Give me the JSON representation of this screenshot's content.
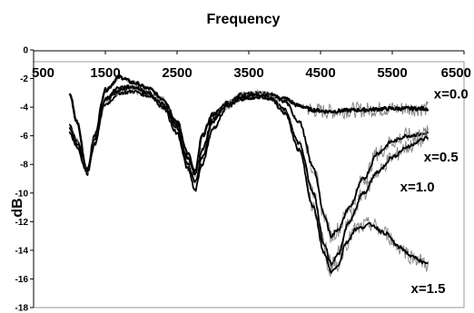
{
  "chart_data": {
    "type": "line",
    "title": "Frequency",
    "xlabel": "",
    "ylabel": "dB",
    "xlim": [
      500,
      6500
    ],
    "ylim": [
      -18,
      0
    ],
    "x_ticks": [
      "500",
      "1500",
      "2500",
      "3500",
      "4500",
      "5500",
      "6500"
    ],
    "y_ticks": [
      "0",
      "-2",
      "-4",
      "-6",
      "-8",
      "-10",
      "-12",
      "-14",
      "-16",
      "-18"
    ],
    "x_axis_position": "top",
    "grid": false,
    "colors": {
      "curve": "#000000",
      "noise": "#8a8a8a",
      "plot_border": "#999999"
    },
    "series": [
      {
        "name": "x=0.0",
        "points": [
          [
            1000,
            -3.0
          ],
          [
            1100,
            -5.0
          ],
          [
            1250,
            -8.6
          ],
          [
            1350,
            -6.0
          ],
          [
            1500,
            -2.8
          ],
          [
            1700,
            -1.9
          ],
          [
            1900,
            -2.3
          ],
          [
            2100,
            -2.7
          ],
          [
            2300,
            -3.4
          ],
          [
            2500,
            -5.0
          ],
          [
            2650,
            -7.5
          ],
          [
            2750,
            -8.7
          ],
          [
            2850,
            -6.0
          ],
          [
            3000,
            -4.5
          ],
          [
            3200,
            -3.8
          ],
          [
            3400,
            -3.4
          ],
          [
            3600,
            -3.3
          ],
          [
            3800,
            -3.2
          ],
          [
            4000,
            -3.4
          ],
          [
            4200,
            -3.9
          ],
          [
            4400,
            -4.2
          ],
          [
            4600,
            -4.3
          ],
          [
            5000,
            -4.2
          ],
          [
            5500,
            -4.1
          ],
          [
            6000,
            -4.1
          ]
        ]
      },
      {
        "name": "x=0.5",
        "points": [
          [
            1000,
            -5.2
          ],
          [
            1100,
            -6.3
          ],
          [
            1250,
            -8.3
          ],
          [
            1350,
            -6.2
          ],
          [
            1500,
            -3.8
          ],
          [
            1700,
            -3.0
          ],
          [
            1900,
            -2.9
          ],
          [
            2100,
            -3.2
          ],
          [
            2300,
            -3.7
          ],
          [
            2500,
            -5.3
          ],
          [
            2650,
            -7.2
          ],
          [
            2750,
            -8.5
          ],
          [
            2850,
            -7.0
          ],
          [
            3000,
            -4.8
          ],
          [
            3200,
            -3.7
          ],
          [
            3400,
            -3.1
          ],
          [
            3600,
            -3.0
          ],
          [
            3800,
            -3.1
          ],
          [
            4000,
            -3.6
          ],
          [
            4200,
            -5.0
          ],
          [
            4400,
            -8.2
          ],
          [
            4550,
            -11.5
          ],
          [
            4650,
            -13.0
          ],
          [
            4750,
            -12.5
          ],
          [
            4900,
            -11.0
          ],
          [
            5100,
            -9.0
          ],
          [
            5300,
            -7.2
          ],
          [
            5500,
            -6.4
          ],
          [
            5700,
            -6.0
          ],
          [
            5900,
            -5.9
          ],
          [
            6000,
            -5.8
          ]
        ]
      },
      {
        "name": "x=1.0",
        "points": [
          [
            1000,
            -5.5
          ],
          [
            1100,
            -6.5
          ],
          [
            1250,
            -8.5
          ],
          [
            1350,
            -6.5
          ],
          [
            1500,
            -3.5
          ],
          [
            1700,
            -2.8
          ],
          [
            1900,
            -2.6
          ],
          [
            2100,
            -3.0
          ],
          [
            2300,
            -3.8
          ],
          [
            2500,
            -5.5
          ],
          [
            2650,
            -8.0
          ],
          [
            2750,
            -9.2
          ],
          [
            2850,
            -7.5
          ],
          [
            3000,
            -5.0
          ],
          [
            3200,
            -3.8
          ],
          [
            3400,
            -3.2
          ],
          [
            3600,
            -3.1
          ],
          [
            3800,
            -3.3
          ],
          [
            4000,
            -4.2
          ],
          [
            4200,
            -6.5
          ],
          [
            4400,
            -10.0
          ],
          [
            4550,
            -13.5
          ],
          [
            4650,
            -15.0
          ],
          [
            4750,
            -14.2
          ],
          [
            4900,
            -12.0
          ],
          [
            5100,
            -10.0
          ],
          [
            5300,
            -8.5
          ],
          [
            5500,
            -7.5
          ],
          [
            5700,
            -6.8
          ],
          [
            5900,
            -6.3
          ],
          [
            6000,
            -6.1
          ]
        ]
      },
      {
        "name": "x=1.5",
        "points": [
          [
            1000,
            -5.8
          ],
          [
            1100,
            -6.8
          ],
          [
            1250,
            -8.6
          ],
          [
            1350,
            -6.6
          ],
          [
            1500,
            -3.4
          ],
          [
            1700,
            -2.6
          ],
          [
            1900,
            -2.6
          ],
          [
            2100,
            -3.0
          ],
          [
            2300,
            -4.0
          ],
          [
            2500,
            -5.8
          ],
          [
            2650,
            -8.3
          ],
          [
            2750,
            -9.8
          ],
          [
            2850,
            -8.0
          ],
          [
            3000,
            -5.5
          ],
          [
            3200,
            -4.0
          ],
          [
            3400,
            -3.3
          ],
          [
            3600,
            -3.2
          ],
          [
            3800,
            -3.4
          ],
          [
            4000,
            -4.4
          ],
          [
            4200,
            -7.0
          ],
          [
            4400,
            -11.0
          ],
          [
            4550,
            -14.2
          ],
          [
            4650,
            -15.5
          ],
          [
            4750,
            -15.0
          ],
          [
            4850,
            -13.5
          ],
          [
            5000,
            -12.5
          ],
          [
            5200,
            -12.2
          ],
          [
            5400,
            -12.8
          ],
          [
            5600,
            -13.8
          ],
          [
            5800,
            -14.5
          ],
          [
            6000,
            -15.0
          ]
        ]
      }
    ]
  }
}
